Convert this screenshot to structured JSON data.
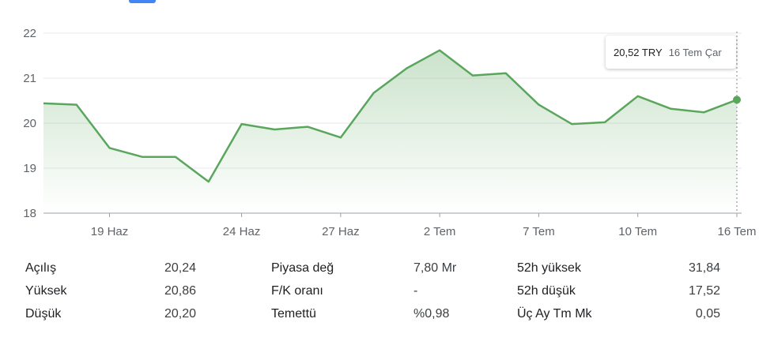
{
  "colors": {
    "line": "#5ba65d",
    "fill": "#5ba65d",
    "accent": "#4285f4",
    "grid": "#e8eaed",
    "axis": "#9aa0a6"
  },
  "tooltip": {
    "price": "20,52 TRY",
    "date": "16 Tem Çar"
  },
  "chart_data": {
    "type": "area",
    "ylim": [
      18,
      22
    ],
    "yticks": [
      18,
      19,
      20,
      21,
      22
    ],
    "x_labels": [
      "19 Haz",
      "24 Haz",
      "27 Haz",
      "2 Tem",
      "7 Tem",
      "10 Tem",
      "16 Tem"
    ],
    "x_label_index": [
      2,
      6,
      9,
      12,
      15,
      18,
      21
    ],
    "values": [
      20.44,
      20.41,
      19.45,
      19.25,
      19.25,
      18.7,
      19.98,
      19.86,
      19.92,
      19.68,
      20.67,
      21.22,
      21.62,
      21.06,
      21.11,
      20.41,
      19.98,
      20.02,
      20.6,
      20.32,
      20.24,
      20.52
    ]
  },
  "stats": [
    [
      {
        "label": "Açılış",
        "value": "20,24"
      },
      {
        "label": "Piyasa değ",
        "value": "7,80 Mr"
      },
      {
        "label": "52h yüksek",
        "value": "31,84"
      }
    ],
    [
      {
        "label": "Yüksek",
        "value": "20,86"
      },
      {
        "label": "F/K oranı",
        "value": "-"
      },
      {
        "label": "52h düşük",
        "value": "17,52"
      }
    ],
    [
      {
        "label": "Düşük",
        "value": "20,20"
      },
      {
        "label": "Temettü",
        "value": "%0,98"
      },
      {
        "label": "Üç Ay Tm Mk",
        "value": "0,05"
      }
    ]
  ]
}
